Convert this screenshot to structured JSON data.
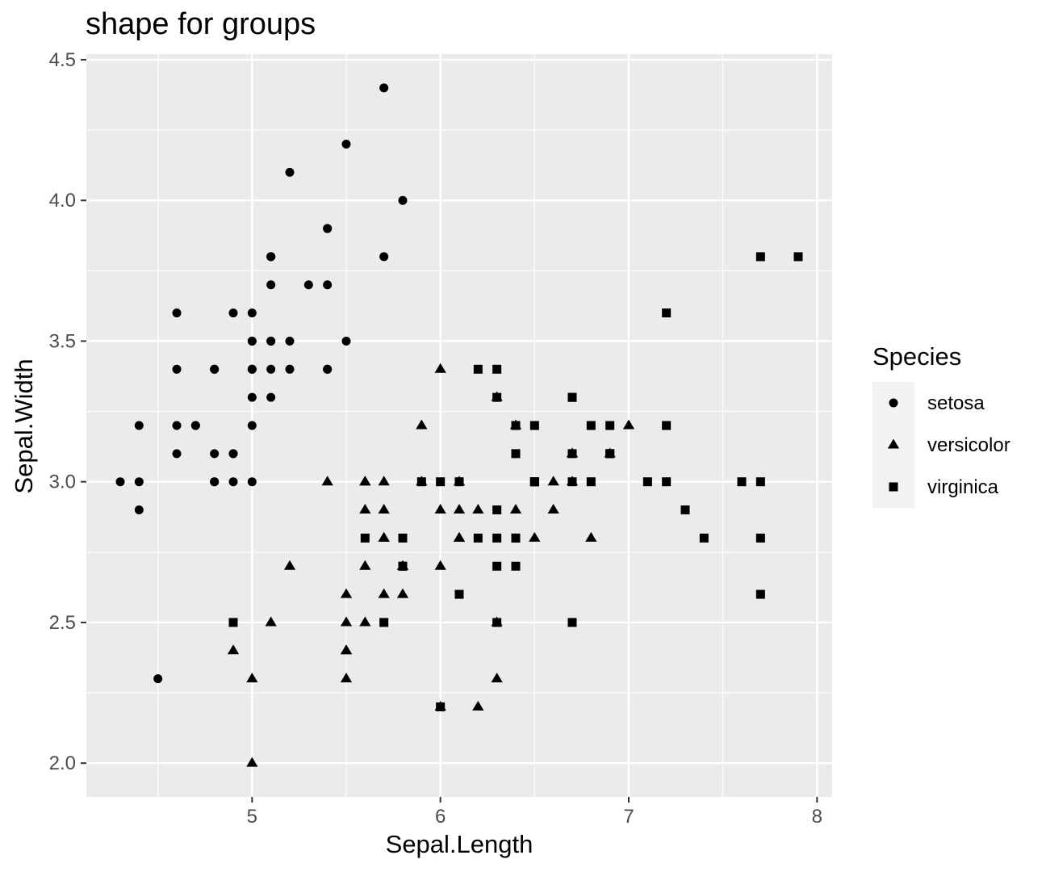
{
  "chart_data": {
    "type": "scatter",
    "title": "shape for groups",
    "xlabel": "Sepal.Length",
    "ylabel": "Sepal.Width",
    "xlim": [
      4.12,
      8.08
    ],
    "ylim": [
      1.88,
      4.52
    ],
    "x_ticks": [
      "5",
      "6",
      "7",
      "8"
    ],
    "y_ticks": [
      "2.0",
      "2.5",
      "3.0",
      "3.5",
      "4.0",
      "4.5"
    ],
    "grid": true,
    "background": "#ebebeb",
    "point_color": "#000000",
    "legend": {
      "title": "Species",
      "position": "right",
      "entries": [
        {
          "label": "setosa",
          "shape": "circle"
        },
        {
          "label": "versicolor",
          "shape": "triangle"
        },
        {
          "label": "virginica",
          "shape": "square"
        }
      ]
    },
    "series": [
      {
        "name": "setosa",
        "shape": "circle",
        "points": [
          [
            5.1,
            3.5
          ],
          [
            4.9,
            3.0
          ],
          [
            4.7,
            3.2
          ],
          [
            4.6,
            3.1
          ],
          [
            5.0,
            3.6
          ],
          [
            5.4,
            3.9
          ],
          [
            4.6,
            3.4
          ],
          [
            5.0,
            3.4
          ],
          [
            4.4,
            2.9
          ],
          [
            4.9,
            3.1
          ],
          [
            5.4,
            3.7
          ],
          [
            4.8,
            3.4
          ],
          [
            4.8,
            3.0
          ],
          [
            4.3,
            3.0
          ],
          [
            5.8,
            4.0
          ],
          [
            5.7,
            4.4
          ],
          [
            5.4,
            3.9
          ],
          [
            5.1,
            3.5
          ],
          [
            5.7,
            3.8
          ],
          [
            5.1,
            3.8
          ],
          [
            5.4,
            3.4
          ],
          [
            5.1,
            3.7
          ],
          [
            4.6,
            3.6
          ],
          [
            5.1,
            3.3
          ],
          [
            4.8,
            3.4
          ],
          [
            5.0,
            3.0
          ],
          [
            5.0,
            3.4
          ],
          [
            5.2,
            3.5
          ],
          [
            5.2,
            3.4
          ],
          [
            4.7,
            3.2
          ],
          [
            4.8,
            3.1
          ],
          [
            5.4,
            3.4
          ],
          [
            5.2,
            4.1
          ],
          [
            5.5,
            4.2
          ],
          [
            4.9,
            3.1
          ],
          [
            5.0,
            3.2
          ],
          [
            5.5,
            3.5
          ],
          [
            4.9,
            3.6
          ],
          [
            4.4,
            3.0
          ],
          [
            5.1,
            3.4
          ],
          [
            5.0,
            3.5
          ],
          [
            4.5,
            2.3
          ],
          [
            4.4,
            3.2
          ],
          [
            5.0,
            3.5
          ],
          [
            5.1,
            3.8
          ],
          [
            4.8,
            3.0
          ],
          [
            5.1,
            3.8
          ],
          [
            4.6,
            3.2
          ],
          [
            5.3,
            3.7
          ],
          [
            5.0,
            3.3
          ]
        ]
      },
      {
        "name": "versicolor",
        "shape": "triangle",
        "points": [
          [
            7.0,
            3.2
          ],
          [
            6.4,
            3.2
          ],
          [
            6.9,
            3.1
          ],
          [
            5.5,
            2.3
          ],
          [
            6.5,
            2.8
          ],
          [
            5.7,
            2.8
          ],
          [
            6.3,
            3.3
          ],
          [
            4.9,
            2.4
          ],
          [
            6.6,
            2.9
          ],
          [
            5.2,
            2.7
          ],
          [
            5.0,
            2.0
          ],
          [
            5.9,
            3.0
          ],
          [
            6.0,
            2.2
          ],
          [
            6.1,
            2.9
          ],
          [
            5.6,
            2.9
          ],
          [
            6.7,
            3.1
          ],
          [
            5.6,
            3.0
          ],
          [
            5.8,
            2.7
          ],
          [
            6.2,
            2.2
          ],
          [
            5.6,
            2.5
          ],
          [
            5.9,
            3.2
          ],
          [
            6.1,
            2.8
          ],
          [
            6.3,
            2.5
          ],
          [
            6.1,
            2.8
          ],
          [
            6.4,
            2.9
          ],
          [
            6.6,
            3.0
          ],
          [
            6.8,
            2.8
          ],
          [
            6.7,
            3.0
          ],
          [
            6.0,
            2.9
          ],
          [
            5.7,
            2.6
          ],
          [
            5.5,
            2.4
          ],
          [
            5.5,
            2.4
          ],
          [
            5.8,
            2.7
          ],
          [
            6.0,
            2.7
          ],
          [
            5.4,
            3.0
          ],
          [
            6.0,
            3.4
          ],
          [
            6.7,
            3.1
          ],
          [
            6.3,
            2.3
          ],
          [
            5.6,
            3.0
          ],
          [
            5.5,
            2.5
          ],
          [
            5.5,
            2.6
          ],
          [
            6.1,
            3.0
          ],
          [
            5.8,
            2.6
          ],
          [
            5.0,
            2.3
          ],
          [
            5.6,
            2.7
          ],
          [
            5.7,
            3.0
          ],
          [
            5.7,
            2.9
          ],
          [
            6.2,
            2.9
          ],
          [
            5.1,
            2.5
          ],
          [
            5.7,
            2.8
          ]
        ]
      },
      {
        "name": "virginica",
        "shape": "square",
        "points": [
          [
            6.3,
            3.3
          ],
          [
            5.8,
            2.7
          ],
          [
            7.1,
            3.0
          ],
          [
            6.3,
            2.9
          ],
          [
            6.5,
            3.0
          ],
          [
            7.6,
            3.0
          ],
          [
            4.9,
            2.5
          ],
          [
            7.3,
            2.9
          ],
          [
            6.7,
            2.5
          ],
          [
            7.2,
            3.6
          ],
          [
            6.5,
            3.2
          ],
          [
            6.4,
            2.7
          ],
          [
            6.8,
            3.0
          ],
          [
            5.7,
            2.5
          ],
          [
            5.8,
            2.8
          ],
          [
            6.4,
            3.2
          ],
          [
            6.5,
            3.0
          ],
          [
            7.7,
            3.8
          ],
          [
            7.7,
            2.6
          ],
          [
            6.0,
            2.2
          ],
          [
            6.9,
            3.2
          ],
          [
            5.6,
            2.8
          ],
          [
            7.7,
            2.8
          ],
          [
            6.3,
            2.7
          ],
          [
            6.7,
            3.3
          ],
          [
            7.2,
            3.2
          ],
          [
            6.2,
            2.8
          ],
          [
            6.1,
            3.0
          ],
          [
            6.4,
            2.8
          ],
          [
            7.2,
            3.0
          ],
          [
            7.4,
            2.8
          ],
          [
            7.9,
            3.8
          ],
          [
            6.4,
            2.8
          ],
          [
            6.3,
            2.8
          ],
          [
            6.1,
            2.6
          ],
          [
            7.7,
            3.0
          ],
          [
            6.3,
            3.4
          ],
          [
            6.4,
            3.1
          ],
          [
            6.0,
            3.0
          ],
          [
            6.9,
            3.1
          ],
          [
            6.7,
            3.1
          ],
          [
            6.9,
            3.1
          ],
          [
            5.8,
            2.7
          ],
          [
            6.8,
            3.2
          ],
          [
            6.7,
            3.3
          ],
          [
            6.7,
            3.0
          ],
          [
            6.3,
            2.5
          ],
          [
            6.5,
            3.0
          ],
          [
            6.2,
            3.4
          ],
          [
            5.9,
            3.0
          ]
        ]
      }
    ]
  }
}
